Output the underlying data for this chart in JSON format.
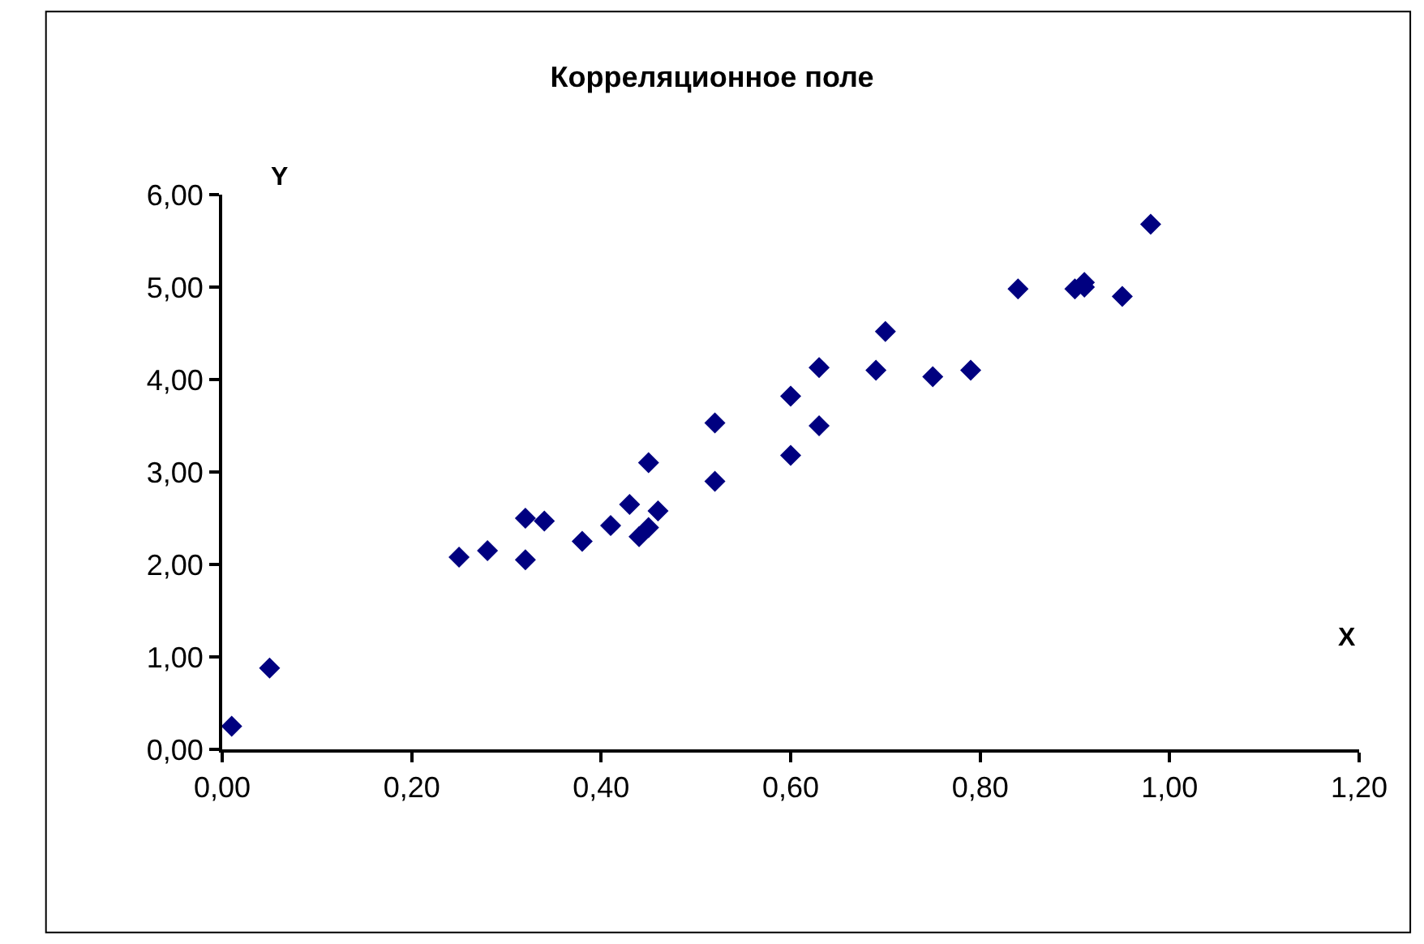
{
  "chart_data": {
    "type": "scatter",
    "title": "Корреляционное поле",
    "xlabel": "X",
    "ylabel": "Y",
    "x": [
      0.01,
      0.05,
      0.25,
      0.28,
      0.32,
      0.32,
      0.34,
      0.38,
      0.41,
      0.43,
      0.44,
      0.45,
      0.45,
      0.46,
      0.52,
      0.52,
      0.6,
      0.6,
      0.63,
      0.63,
      0.69,
      0.7,
      0.75,
      0.79,
      0.84,
      0.9,
      0.91,
      0.91,
      0.95,
      0.98
    ],
    "series": [
      {
        "color": "#000080",
        "values": [
          0.25,
          0.88,
          2.08,
          2.15,
          2.5,
          2.05,
          2.47,
          2.25,
          2.42,
          2.65,
          2.3,
          2.4,
          3.1,
          2.58,
          3.53,
          2.9,
          3.82,
          3.18,
          4.13,
          3.5,
          4.1,
          4.52,
          4.03,
          4.1,
          4.98,
          4.98,
          5.05,
          5.0,
          4.9,
          5.68
        ]
      }
    ],
    "xlim": [
      0,
      1.2
    ],
    "ylim": [
      0,
      6
    ],
    "xticks": [
      {
        "value": 0,
        "label": "0,00"
      },
      {
        "value": 0.2,
        "label": "0,20"
      },
      {
        "value": 0.4,
        "label": "0,40"
      },
      {
        "value": 0.6,
        "label": "0,60"
      },
      {
        "value": 0.8,
        "label": "0,80"
      },
      {
        "value": 1.0,
        "label": "1,00"
      },
      {
        "value": 1.2,
        "label": "1,20"
      }
    ],
    "yticks": [
      {
        "value": 0,
        "label": "0,00"
      },
      {
        "value": 1,
        "label": "1,00"
      },
      {
        "value": 2,
        "label": "2,00"
      },
      {
        "value": 3,
        "label": "3,00"
      },
      {
        "value": 4,
        "label": "4,00"
      },
      {
        "value": 5,
        "label": "5,00"
      },
      {
        "value": 6,
        "label": "6,00"
      }
    ],
    "legend": false,
    "marker": "diamond"
  }
}
